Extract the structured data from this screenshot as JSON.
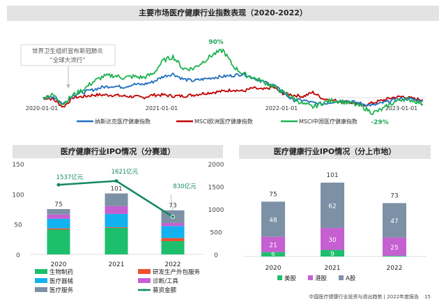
{
  "footer": {
    "text": "中国医疗健康行业投资与退出趋势 | 2022年度报告",
    "page": "15"
  },
  "colors": {
    "nasdaq": "#1f6fc0",
    "europe": "#c00000",
    "china": "#1fb24f",
    "bio": "#1dbf6d",
    "cro": "#f0502a",
    "device": "#12b2f0",
    "diag": "#c65fd2",
    "service": "#7d91a6",
    "fund": "#12885a",
    "us": "#1dbf6d",
    "hk": "#c65fd2",
    "a": "#7d91a6"
  },
  "chart_data": [
    {
      "type": "line",
      "title": "主要市场医疗健康行业指数表现（2020-2022）",
      "x_tick_labels": [
        "2020-01-01",
        "2021-01-01",
        "2022-01-01",
        "2023-01-01"
      ],
      "x": [
        "2020-01",
        "2020-02",
        "2020-03",
        "2020-04",
        "2020-05",
        "2020-06",
        "2020-07",
        "2020-08",
        "2020-09",
        "2020-10",
        "2020-11",
        "2020-12",
        "2021-01",
        "2021-02",
        "2021-03",
        "2021-04",
        "2021-05",
        "2021-06",
        "2021-07",
        "2021-08",
        "2021-09",
        "2021-10",
        "2021-11",
        "2021-12",
        "2022-01",
        "2022-02",
        "2022-03",
        "2022-04",
        "2022-05",
        "2022-06",
        "2022-07",
        "2022-08",
        "2022-09",
        "2022-10",
        "2022-11",
        "2022-12",
        "2023-01",
        "2023-02",
        "2023-03"
      ],
      "yunit": "%",
      "series": [
        {
          "name": "纳斯达克医疗健康指数",
          "color_key": "nasdaq",
          "values": [
            0,
            2,
            -12,
            5,
            10,
            15,
            20,
            22,
            20,
            25,
            25,
            30,
            40,
            45,
            35,
            32,
            35,
            38,
            40,
            42,
            45,
            38,
            30,
            25,
            10,
            -5,
            -5,
            -10,
            -12,
            -8,
            -5,
            -8,
            -12,
            -15,
            -10,
            -5,
            -2,
            -3,
            -8
          ]
        },
        {
          "name": "MSCI欧洲医疗健康指数",
          "color_key": "europe",
          "values": [
            0,
            -3,
            -18,
            0,
            2,
            5,
            5,
            5,
            3,
            2,
            0,
            5,
            5,
            3,
            3,
            5,
            8,
            10,
            12,
            15,
            12,
            18,
            15,
            20,
            8,
            5,
            2,
            10,
            -2,
            -5,
            -8,
            -10,
            -15,
            -10,
            -5,
            0,
            2,
            -2,
            -4
          ]
        },
        {
          "name": "MSCI中国医疗健康指数",
          "color_key": "china",
          "values": [
            0,
            5,
            -12,
            5,
            15,
            30,
            40,
            42,
            38,
            40,
            38,
            45,
            70,
            78,
            55,
            55,
            68,
            82,
            90,
            60,
            45,
            38,
            30,
            22,
            10,
            0,
            -12,
            -18,
            -10,
            -5,
            -8,
            -12,
            -18,
            -29,
            -22,
            -10,
            -2,
            -5,
            -12
          ]
        }
      ],
      "annotations": [
        {
          "text": "90%",
          "series": "MSCI中国医疗健康指数",
          "x": "2021-07"
        },
        {
          "text": "-29%",
          "series": "MSCI中国医疗健康指数",
          "x": "2022-10"
        },
        {
          "text_line1": "世界卫生组织宣布新冠肺炎",
          "text_line2": "“全球大流行”",
          "x": "2020-03"
        }
      ],
      "legend": "bottom",
      "grid": false
    },
    {
      "type": "bar",
      "stacked": true,
      "title": "医疗健康行业IPO情况（分赛道）",
      "categories": [
        "2020",
        "2021",
        "2022"
      ],
      "ylim": [
        0,
        150
      ],
      "yticks": [
        "0",
        "50",
        "100",
        "150"
      ],
      "y2lim": [
        0,
        2000
      ],
      "y2ticks": [
        "0",
        "500",
        "1000",
        "1500",
        "2000"
      ],
      "series": [
        {
          "name": "生物制药",
          "color_key": "bio",
          "values": [
            41,
            44,
            22
          ]
        },
        {
          "name": "研发生产外包服务",
          "color_key": "cro",
          "values": [
            2,
            1,
            5
          ]
        },
        {
          "name": "医疗器械",
          "color_key": "device",
          "values": [
            16,
            22,
            20
          ]
        },
        {
          "name": "诊断/工具",
          "color_key": "diag",
          "values": [
            7,
            13,
            5
          ]
        },
        {
          "name": "医疗服务",
          "color_key": "service",
          "values": [
            9,
            21,
            21
          ]
        }
      ],
      "totals": [
        "75",
        "101",
        "73"
      ],
      "line_series": {
        "name": "募资金额",
        "color_key": "fund",
        "values": [
          1537,
          1621,
          830
        ],
        "labels": [
          "1537亿元",
          "1621亿元",
          "830亿元"
        ],
        "axis": "right"
      },
      "legend": "bottom"
    },
    {
      "type": "bar",
      "stacked": true,
      "title": "医疗健康行业IPO情况（分上市地）",
      "categories": [
        "2020",
        "2021",
        "2022"
      ],
      "series": [
        {
          "name": "美股",
          "color_key": "us",
          "values": [
            6,
            9,
            1
          ]
        },
        {
          "name": "港股",
          "color_key": "hk",
          "values": [
            21,
            30,
            25
          ]
        },
        {
          "name": "A股",
          "color_key": "a",
          "values": [
            48,
            62,
            47
          ]
        }
      ],
      "totals": [
        "75",
        "101",
        "73"
      ],
      "legend": "bottom"
    }
  ]
}
